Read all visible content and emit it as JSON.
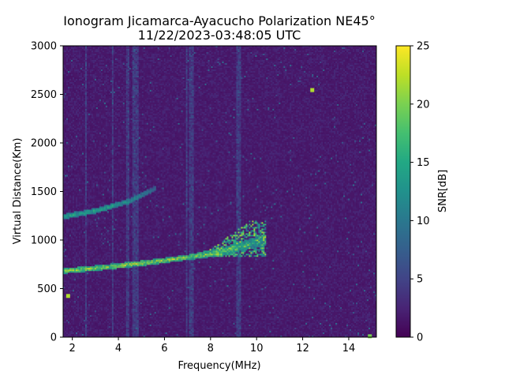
{
  "chart_data": {
    "type": "heatmap",
    "title": "Ionogram Jicamarca-Ayacucho Polarization NE45°",
    "subtitle": "11/22/2023-03:48:05 UTC",
    "xlabel": "Frequency(MHz)",
    "ylabel": "Virtual Distance(Km)",
    "xlim": [
      1.6,
      15.2
    ],
    "ylim": [
      0,
      3000
    ],
    "x_ticks": [
      2,
      4,
      6,
      8,
      10,
      12,
      14
    ],
    "y_ticks": [
      0,
      500,
      1000,
      1500,
      2000,
      2500,
      3000
    ],
    "colorbar": {
      "label": "SNR[dB]",
      "min": 0,
      "max": 25,
      "ticks": [
        0,
        5,
        10,
        15,
        20,
        25
      ],
      "colormap": "viridis"
    },
    "background_snr_db": 2,
    "echo_traces": [
      {
        "label": "first hop",
        "points": [
          {
            "x": 1.6,
            "y": 680,
            "snr_db": 23
          },
          {
            "x": 3.0,
            "y": 710,
            "snr_db": 24
          },
          {
            "x": 5.0,
            "y": 760,
            "snr_db": 25
          },
          {
            "x": 7.0,
            "y": 820,
            "snr_db": 23
          },
          {
            "x": 8.5,
            "y": 880,
            "snr_db": 21
          },
          {
            "x": 9.5,
            "y": 950,
            "snr_db": 18
          },
          {
            "x": 10.4,
            "y": 1000,
            "snr_db": 14
          }
        ]
      },
      {
        "label": "second hop",
        "points": [
          {
            "x": 1.6,
            "y": 1240,
            "snr_db": 16
          },
          {
            "x": 3.0,
            "y": 1300,
            "snr_db": 17
          },
          {
            "x": 4.5,
            "y": 1400,
            "snr_db": 15
          },
          {
            "x": 5.6,
            "y": 1530,
            "snr_db": 10
          }
        ]
      }
    ],
    "spread_region": {
      "x_range": [
        7.5,
        10.4
      ],
      "y_range": [
        820,
        1200
      ],
      "snr_db": 20
    },
    "isolated_echoes": [
      {
        "x": 1.8,
        "y": 420,
        "snr_db": 22
      },
      {
        "x": 12.4,
        "y": 2540,
        "snr_db": 22
      },
      {
        "x": 14.9,
        "y": 5,
        "snr_db": 20
      }
    ],
    "interference_bands_mhz": [
      [
        4.35,
        4.45
      ],
      [
        4.6,
        4.85
      ],
      [
        6.9,
        7.0
      ],
      [
        7.1,
        7.25
      ],
      [
        9.1,
        9.3
      ],
      [
        2.55,
        2.62
      ],
      [
        3.7,
        3.78
      ]
    ]
  }
}
